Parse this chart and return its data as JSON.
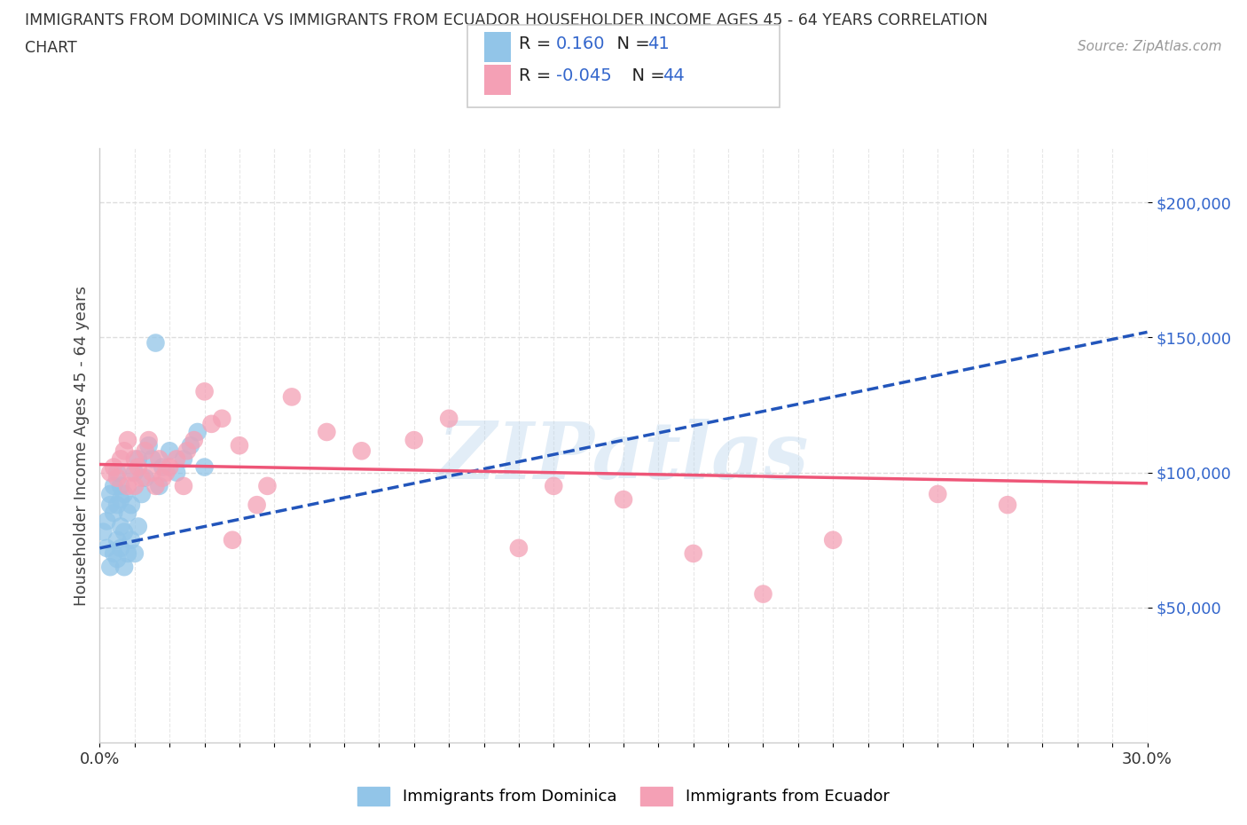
{
  "title_line1": "IMMIGRANTS FROM DOMINICA VS IMMIGRANTS FROM ECUADOR HOUSEHOLDER INCOME AGES 45 - 64 YEARS CORRELATION",
  "title_line2": "CHART",
  "source_text": "Source: ZipAtlas.com",
  "ylabel": "Householder Income Ages 45 - 64 years",
  "watermark": "ZIPatlas",
  "xlim": [
    0.0,
    0.3
  ],
  "ylim": [
    0,
    220000
  ],
  "ytick_labels": [
    "$50,000",
    "$100,000",
    "$150,000",
    "$200,000"
  ],
  "ytick_values": [
    50000,
    100000,
    150000,
    200000
  ],
  "dominica_color": "#92C5E8",
  "ecuador_color": "#F4A0B5",
  "dominica_R": 0.16,
  "dominica_N": 41,
  "ecuador_R": -0.045,
  "ecuador_N": 44,
  "dominica_line_color": "#2255BB",
  "ecuador_line_color": "#EE5577",
  "dominica_line_y0": 72000,
  "dominica_line_y1": 152000,
  "ecuador_line_y0": 103000,
  "ecuador_line_y1": 96000,
  "dominica_x": [
    0.001,
    0.002,
    0.002,
    0.003,
    0.003,
    0.003,
    0.004,
    0.004,
    0.004,
    0.005,
    0.005,
    0.005,
    0.005,
    0.006,
    0.006,
    0.006,
    0.006,
    0.007,
    0.007,
    0.007,
    0.008,
    0.008,
    0.009,
    0.009,
    0.01,
    0.01,
    0.011,
    0.011,
    0.012,
    0.013,
    0.014,
    0.015,
    0.016,
    0.017,
    0.018,
    0.02,
    0.022,
    0.024,
    0.026,
    0.028,
    0.03
  ],
  "dominica_y": [
    78000,
    82000,
    72000,
    88000,
    65000,
    92000,
    70000,
    85000,
    95000,
    68000,
    75000,
    88000,
    100000,
    72000,
    80000,
    90000,
    95000,
    65000,
    78000,
    92000,
    70000,
    85000,
    75000,
    88000,
    70000,
    100000,
    80000,
    105000,
    92000,
    98000,
    110000,
    105000,
    148000,
    95000,
    102000,
    108000,
    100000,
    105000,
    110000,
    115000,
    102000
  ],
  "ecuador_x": [
    0.003,
    0.004,
    0.005,
    0.006,
    0.007,
    0.008,
    0.008,
    0.009,
    0.01,
    0.01,
    0.011,
    0.012,
    0.013,
    0.014,
    0.015,
    0.016,
    0.017,
    0.018,
    0.019,
    0.02,
    0.022,
    0.024,
    0.025,
    0.027,
    0.03,
    0.032,
    0.035,
    0.038,
    0.04,
    0.045,
    0.048,
    0.055,
    0.065,
    0.075,
    0.09,
    0.1,
    0.12,
    0.13,
    0.15,
    0.17,
    0.19,
    0.21,
    0.24,
    0.26
  ],
  "ecuador_y": [
    100000,
    102000,
    98000,
    105000,
    108000,
    112000,
    95000,
    100000,
    95000,
    105000,
    102000,
    98000,
    108000,
    112000,
    100000,
    95000,
    105000,
    98000,
    100000,
    102000,
    105000,
    95000,
    108000,
    112000,
    130000,
    118000,
    120000,
    75000,
    110000,
    88000,
    95000,
    128000,
    115000,
    108000,
    112000,
    120000,
    72000,
    95000,
    90000,
    70000,
    55000,
    75000,
    92000,
    88000
  ],
  "background_color": "#FFFFFF",
  "grid_color": "#DDDDDD",
  "title_color": "#333333",
  "value_color": "#3366CC"
}
